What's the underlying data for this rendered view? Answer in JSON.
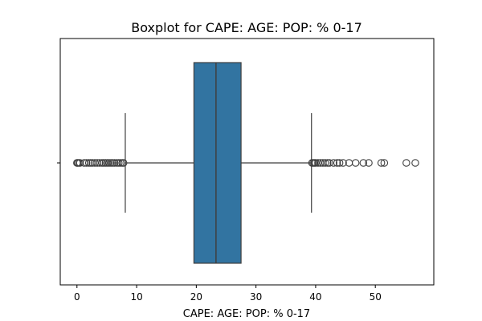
{
  "chart_data": {
    "type": "box",
    "title": "Boxplot for CAPE: AGE: POP: % 0-17",
    "xlabel": "CAPE: AGE: POP: % 0-17",
    "ylabel": "",
    "xlim": [
      -2.8,
      59.8
    ],
    "xticks": [
      0,
      10,
      20,
      30,
      40,
      50
    ],
    "grid": false,
    "legend": "none",
    "colors": {
      "box": "#3274a1",
      "line": "#3f3f3f",
      "outlier": "#3f3f3f"
    },
    "box": {
      "whisker_low": 8.1,
      "q1": 19.6,
      "median": 23.3,
      "q3": 27.5,
      "whisker_high": 39.3
    },
    "outliers": [
      0.0,
      0.1,
      0.3,
      0.5,
      1.2,
      1.6,
      2.0,
      2.3,
      2.6,
      3.0,
      3.4,
      3.8,
      4.2,
      4.5,
      4.8,
      5.1,
      5.4,
      5.7,
      6.0,
      6.3,
      6.7,
      7.0,
      7.3,
      7.6,
      7.8,
      39.4,
      39.6,
      39.8,
      40.0,
      40.4,
      40.8,
      41.2,
      41.6,
      42.0,
      42.3,
      43.0,
      43.6,
      44.0,
      44.6,
      45.6,
      46.7,
      48.0,
      48.9,
      51.0,
      51.5,
      55.2,
      56.7
    ]
  }
}
